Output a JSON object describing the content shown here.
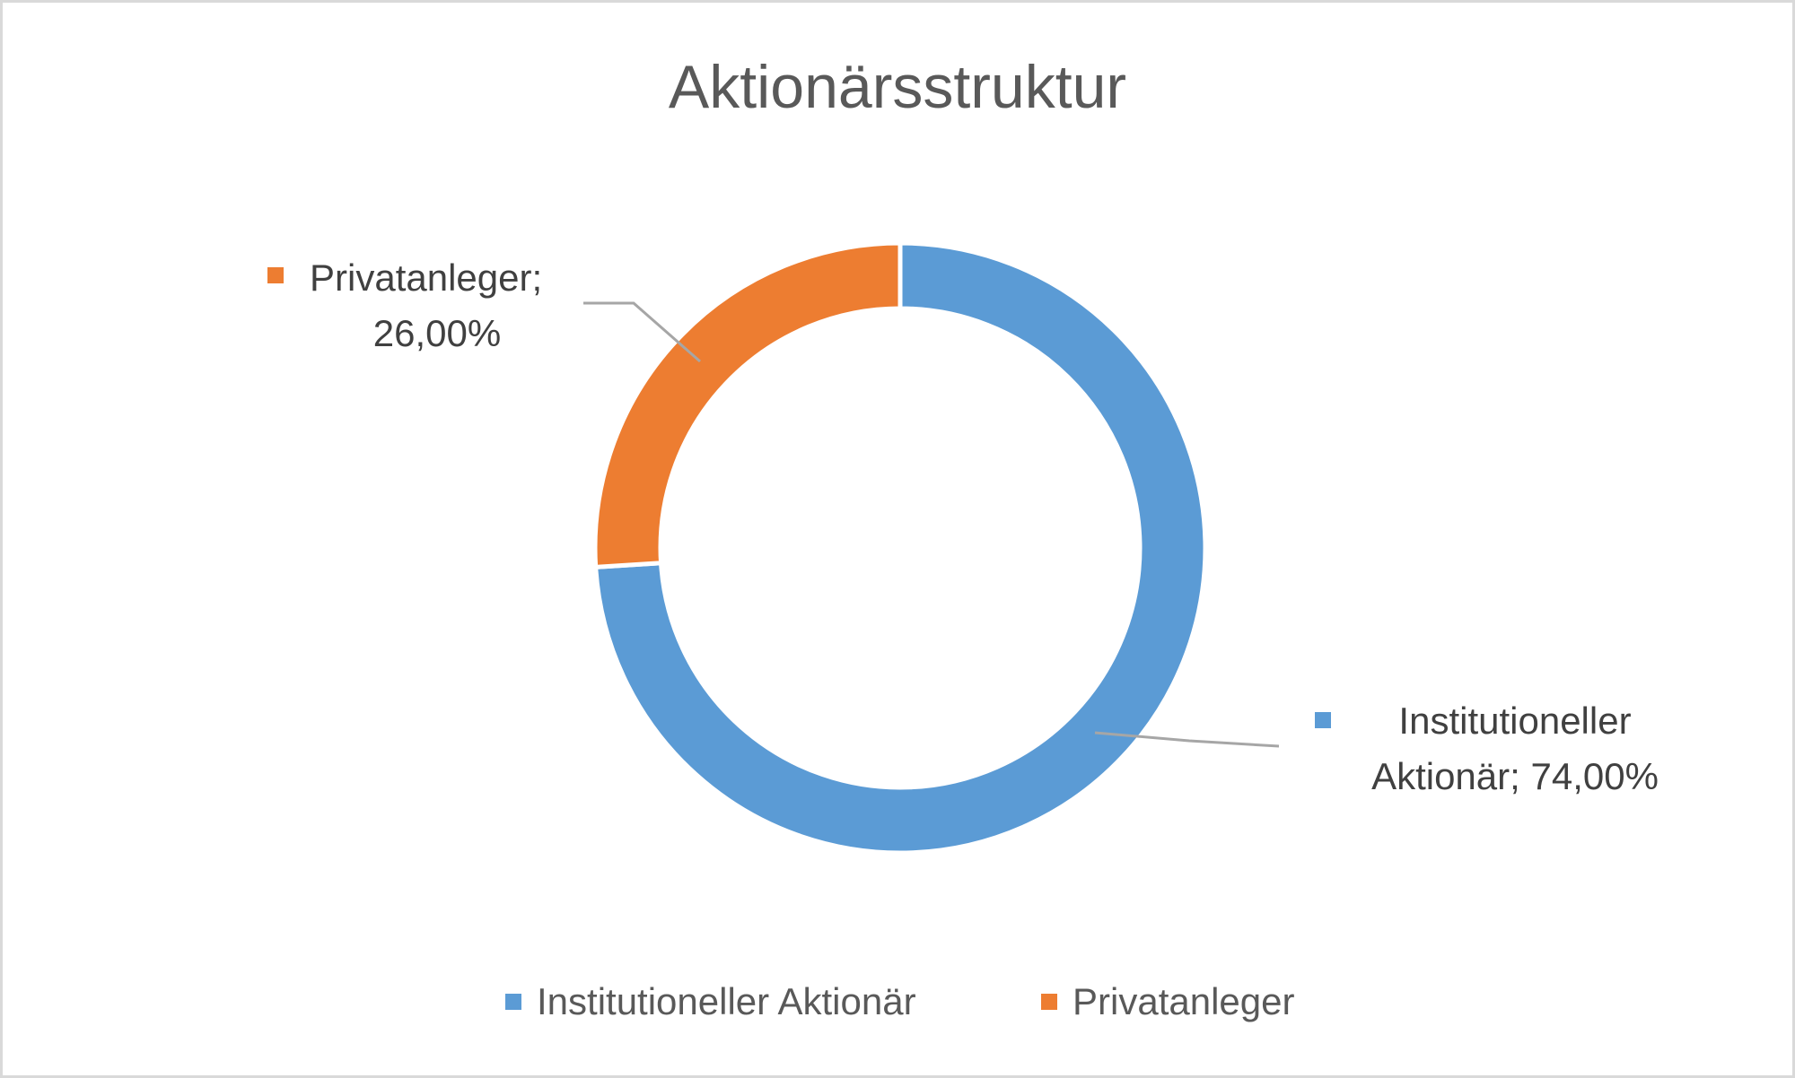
{
  "chart_data": {
    "type": "pie",
    "variant": "doughnut",
    "title": "Aktionärsstruktur",
    "series": [
      {
        "name": "",
        "values": [
          74.0,
          26.0
        ]
      }
    ],
    "categories": [
      "Institutioneller Aktionär",
      "Privatanleger"
    ],
    "colors": [
      "#5b9bd5",
      "#ed7d31"
    ],
    "data_labels": [
      {
        "line1": "Institutioneller",
        "line2": "Aktionär; 74,00%"
      },
      {
        "line1": "Privatanleger;",
        "line2": "26,00%"
      }
    ],
    "legend": {
      "position": "bottom",
      "entries": [
        "Institutioneller Aktionär",
        "Privatanleger"
      ]
    }
  }
}
